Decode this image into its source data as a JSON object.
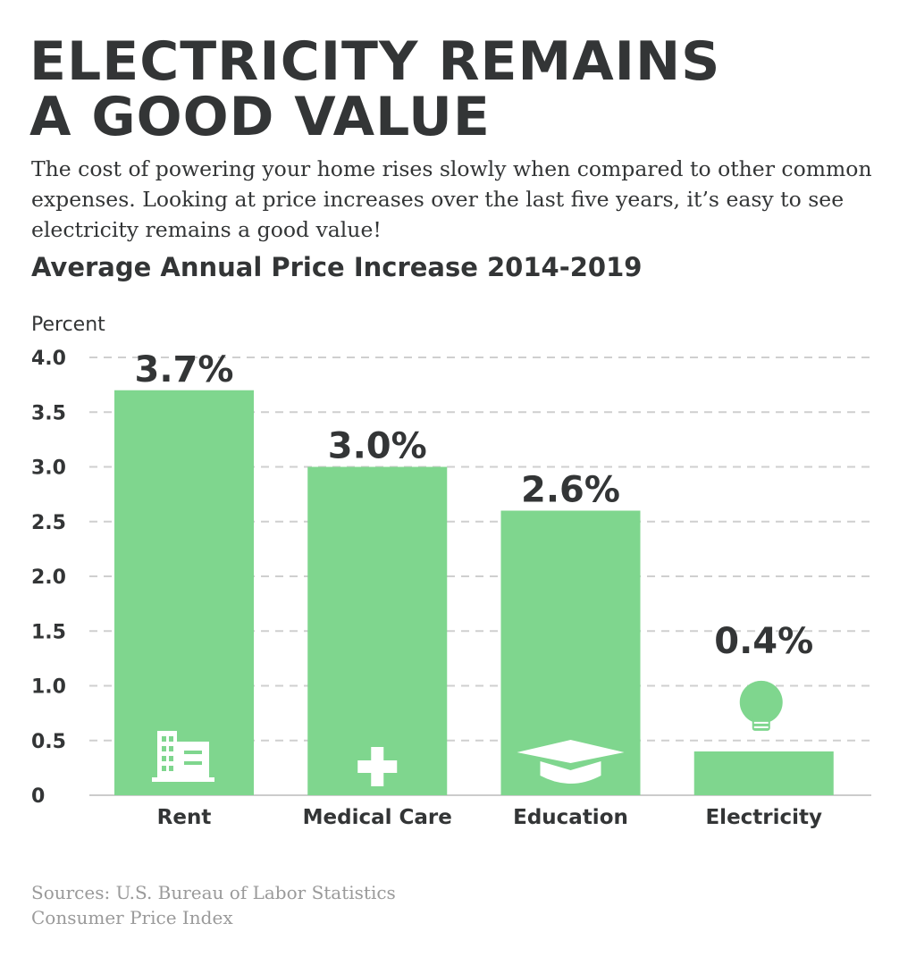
{
  "header": {
    "title_line1": "ELECTRICITY REMAINS",
    "title_line2": "A GOOD VALUE",
    "subtitle": "The cost of powering your home rises slowly when compared to other common expenses. Looking at price increases over the last five years, it’s easy to see electricity remains a good value!"
  },
  "footer": {
    "source_line1": "Sources: U.S. Bureau of Labor Statistics",
    "source_line2": "Consumer Price Index"
  },
  "colors": {
    "bar": "#7fd68e",
    "icon": "#ffffff",
    "bulb": "#7fd68e",
    "grid": "#cfcfcf",
    "text": "#333536"
  },
  "chart_data": {
    "type": "bar",
    "title": "Average Annual Price Increase 2014-2019",
    "ylabel": "Percent",
    "xlabel": "",
    "categories": [
      "Rent",
      "Medical Care",
      "Education",
      "Electricity"
    ],
    "values": [
      3.7,
      3.0,
      2.6,
      0.4
    ],
    "data_labels": [
      "3.7%",
      "3.0%",
      "2.6%",
      "0.4%"
    ],
    "icons": [
      "building-icon",
      "medical-cross-icon",
      "graduation-cap-icon",
      "lightbulb-icon"
    ],
    "ylim": [
      0,
      4.0
    ],
    "yticks": [
      0,
      0.5,
      1.0,
      1.5,
      2.0,
      2.5,
      3.0,
      3.5,
      4.0
    ],
    "ytick_labels": [
      "0",
      "0.5",
      "1.0",
      "1.5",
      "2.0",
      "2.5",
      "3.0",
      "3.5",
      "4.0"
    ],
    "grid": true,
    "grid_style": "dashed"
  }
}
